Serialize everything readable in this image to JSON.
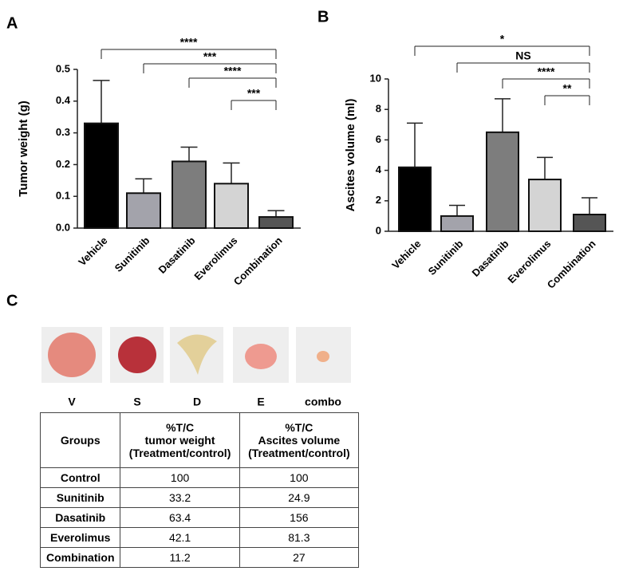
{
  "panel_labels": [
    "A",
    "B",
    "C"
  ],
  "chart_data": [
    {
      "type": "bar",
      "y_label": "Tumor weight (g)",
      "categories": [
        "Vehicle",
        "Sunitinib",
        "Dasatinib",
        "Everolimus",
        "Combination"
      ],
      "values": [
        0.33,
        0.11,
        0.21,
        0.14,
        0.035
      ],
      "errors": [
        0.135,
        0.045,
        0.045,
        0.065,
        0.02
      ],
      "colors": [
        "#000000",
        "#a3a3ab",
        "#7d7d7d",
        "#d4d4d4",
        "#555555"
      ],
      "ylim": [
        0,
        0.5
      ],
      "yticks": [
        {
          "value": 0,
          "label": "0.0"
        },
        0.1,
        0.2,
        0.3,
        0.4,
        0.5
      ],
      "annotations": [
        {
          "from": "Vehicle",
          "to": "Combination",
          "label": "****"
        },
        {
          "from": "Sunitinib",
          "to": "Combination",
          "label": "***"
        },
        {
          "from": "Dasatinib",
          "to": "Combination",
          "label": "****"
        },
        {
          "from": "Everolimus",
          "to": "Combination",
          "label": "***"
        }
      ]
    },
    {
      "type": "bar",
      "y_label": "Ascites volume (ml)",
      "categories": [
        "Vehicle",
        "Sunitinib",
        "Dasatinib",
        "Everolimus",
        "Combination"
      ],
      "values": [
        4.2,
        1.0,
        6.5,
        3.4,
        1.1
      ],
      "errors": [
        2.9,
        0.7,
        2.2,
        1.45,
        1.1
      ],
      "colors": [
        "#000000",
        "#a3a3ab",
        "#7d7d7d",
        "#d4d4d4",
        "#555555"
      ],
      "ylim": [
        0,
        10
      ],
      "yticks": [
        0,
        2,
        4,
        6,
        8,
        10
      ],
      "annotations": [
        {
          "from": "Vehicle",
          "to": "Combination",
          "label": "*"
        },
        {
          "from": "Sunitinib",
          "to": "Combination",
          "label": "NS"
        },
        {
          "from": "Dasatinib",
          "to": "Combination",
          "label": "****"
        },
        {
          "from": "Everolimus",
          "to": "Combination",
          "label": "**"
        }
      ]
    }
  ],
  "photos": [
    "V",
    "S",
    "D",
    "E",
    "combo"
  ],
  "table": {
    "header": [
      [
        "Groups"
      ],
      [
        "%T/C",
        "tumor weight",
        "(Treatment/control)"
      ],
      [
        "%T/C",
        "Ascites volume",
        "(Treatment/control)"
      ]
    ],
    "rows": [
      [
        "Control",
        100,
        100
      ],
      [
        "Sunitinib",
        33.2,
        24.9
      ],
      [
        "Dasatinib",
        63.4,
        156
      ],
      [
        "Everolimus",
        42.1,
        81.3
      ],
      [
        "Combination",
        11.2,
        27
      ]
    ]
  }
}
